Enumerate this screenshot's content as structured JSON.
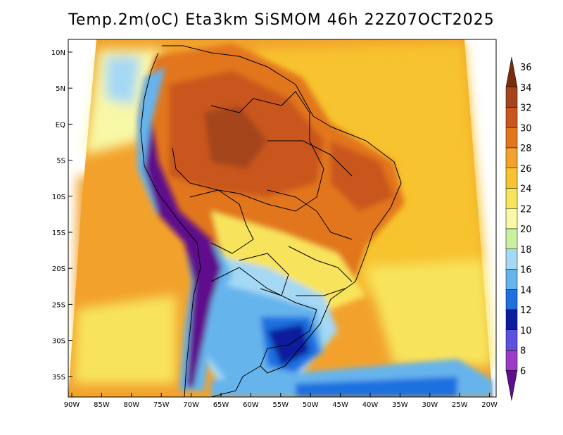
{
  "title": "Temp.2m(oC) Eta3km SiSMOM 46h 22Z07OCT2025",
  "chart_data": {
    "type": "heatmap",
    "variable": "Temp.2m(oC)",
    "lon_ticks": [
      "90W",
      "85W",
      "80W",
      "75W",
      "70W",
      "65W",
      "60W",
      "55W",
      "50W",
      "45W",
      "40W",
      "35W",
      "30W",
      "25W",
      "20W"
    ],
    "lat_ticks": [
      "10N",
      "5N",
      "EQ",
      "5S",
      "10S",
      "15S",
      "20S",
      "25S",
      "30S",
      "35S"
    ],
    "colorbar": {
      "levels": [
        "36",
        "34",
        "32",
        "30",
        "28",
        "26",
        "24",
        "22",
        "20",
        "18",
        "16",
        "14",
        "12",
        "10",
        "8",
        "6"
      ],
      "colors": [
        "#7a2d0c",
        "#a4441c",
        "#c9561f",
        "#e2761d",
        "#f2a22c",
        "#f7c32e",
        "#f8e45c",
        "#f8f8a6",
        "#c8f0a0",
        "#a4d8f4",
        "#66b4ec",
        "#1e6fe0",
        "#0a1e9c",
        "#5a52e0",
        "#9a3cc6",
        "#5e0e8c"
      ]
    },
    "regions": [
      {
        "name": "background_sea_warm",
        "color": "#f2a22c"
      },
      {
        "name": "amazon_hot",
        "color": "#e2761d"
      },
      {
        "name": "andes_cold",
        "color": "#5e0e8c"
      },
      {
        "name": "south_cool",
        "color": "#1e6fe0"
      }
    ]
  }
}
